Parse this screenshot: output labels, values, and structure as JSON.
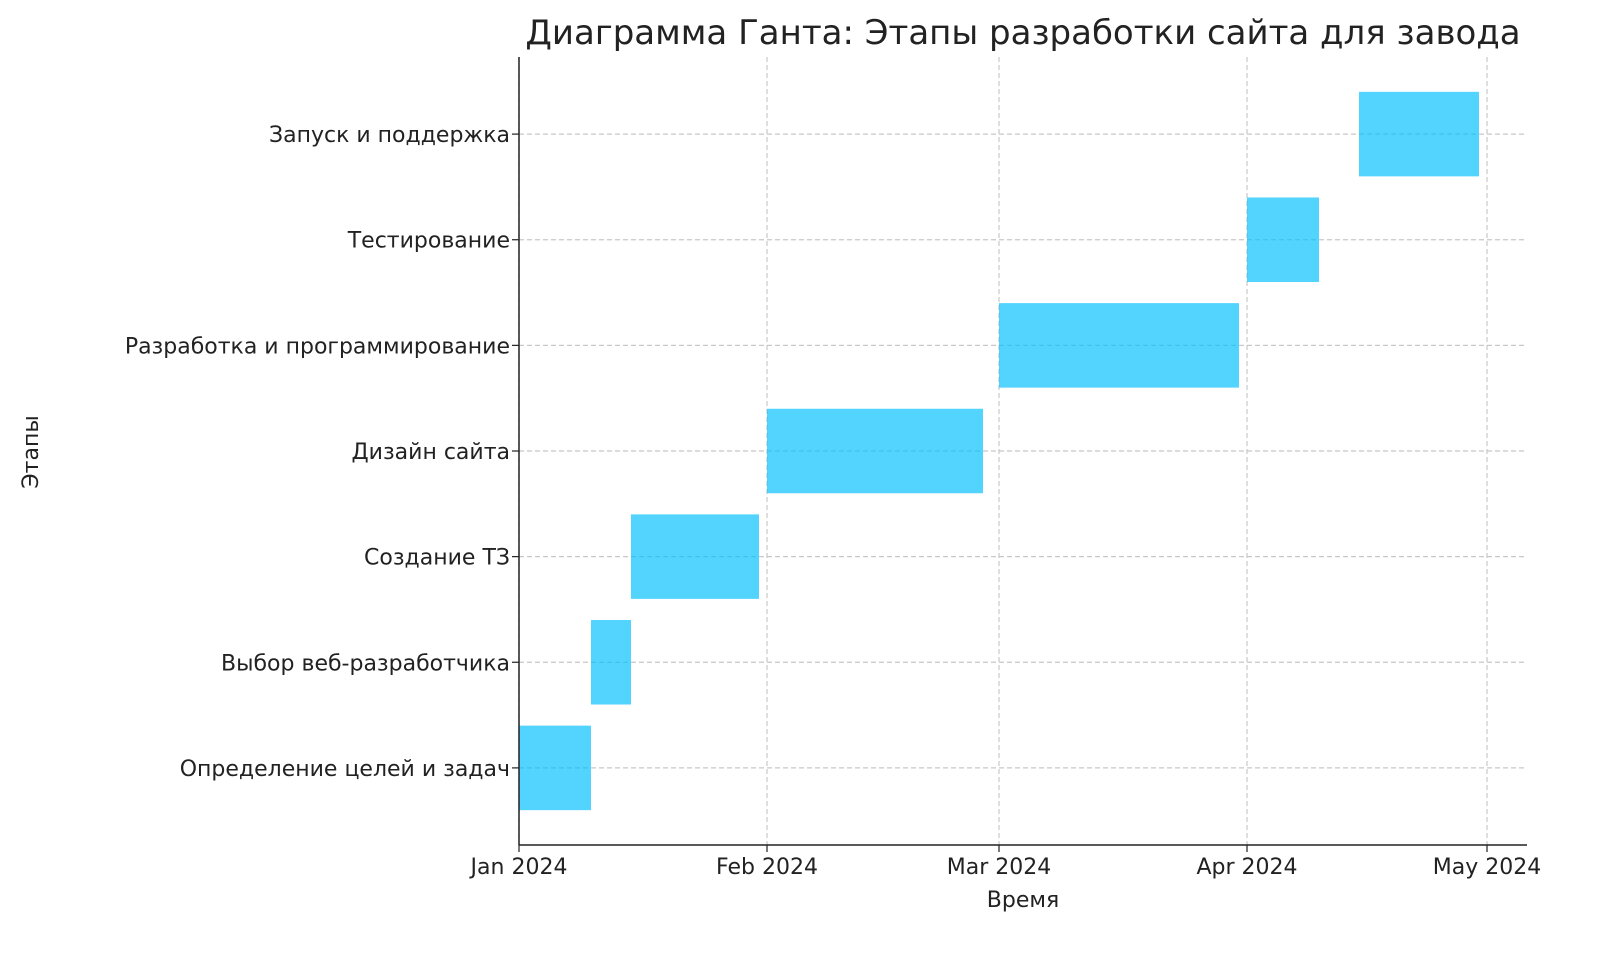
{
  "chart_data": {
    "type": "gantt",
    "title": "Диаграмма Ганта: Этапы разработки сайта для завода",
    "xlabel": "Время",
    "ylabel": "Этапы",
    "xlim": [
      "2024-01-01",
      "2024-05-06"
    ],
    "x_ticks": [
      {
        "date": "2024-01-01",
        "label": "Jan 2024"
      },
      {
        "date": "2024-02-01",
        "label": "Feb 2024"
      },
      {
        "date": "2024-03-01",
        "label": "Mar 2024"
      },
      {
        "date": "2024-04-01",
        "label": "Apr 2024"
      },
      {
        "date": "2024-05-01",
        "label": "May 2024"
      }
    ],
    "grid": true,
    "bar_color": "#00bfff",
    "tasks": [
      {
        "name": "Определение целей и задач",
        "start": "2024-01-01",
        "end": "2024-01-10"
      },
      {
        "name": "Выбор веб-разработчика",
        "start": "2024-01-10",
        "end": "2024-01-15"
      },
      {
        "name": "Создание ТЗ",
        "start": "2024-01-15",
        "end": "2024-01-31"
      },
      {
        "name": "Дизайн сайта",
        "start": "2024-02-01",
        "end": "2024-02-28"
      },
      {
        "name": "Разработка и программирование",
        "start": "2024-03-01",
        "end": "2024-03-31"
      },
      {
        "name": "Тестирование",
        "start": "2024-04-01",
        "end": "2024-04-10"
      },
      {
        "name": "Запуск и поддержка",
        "start": "2024-04-15",
        "end": "2024-04-30"
      }
    ]
  }
}
